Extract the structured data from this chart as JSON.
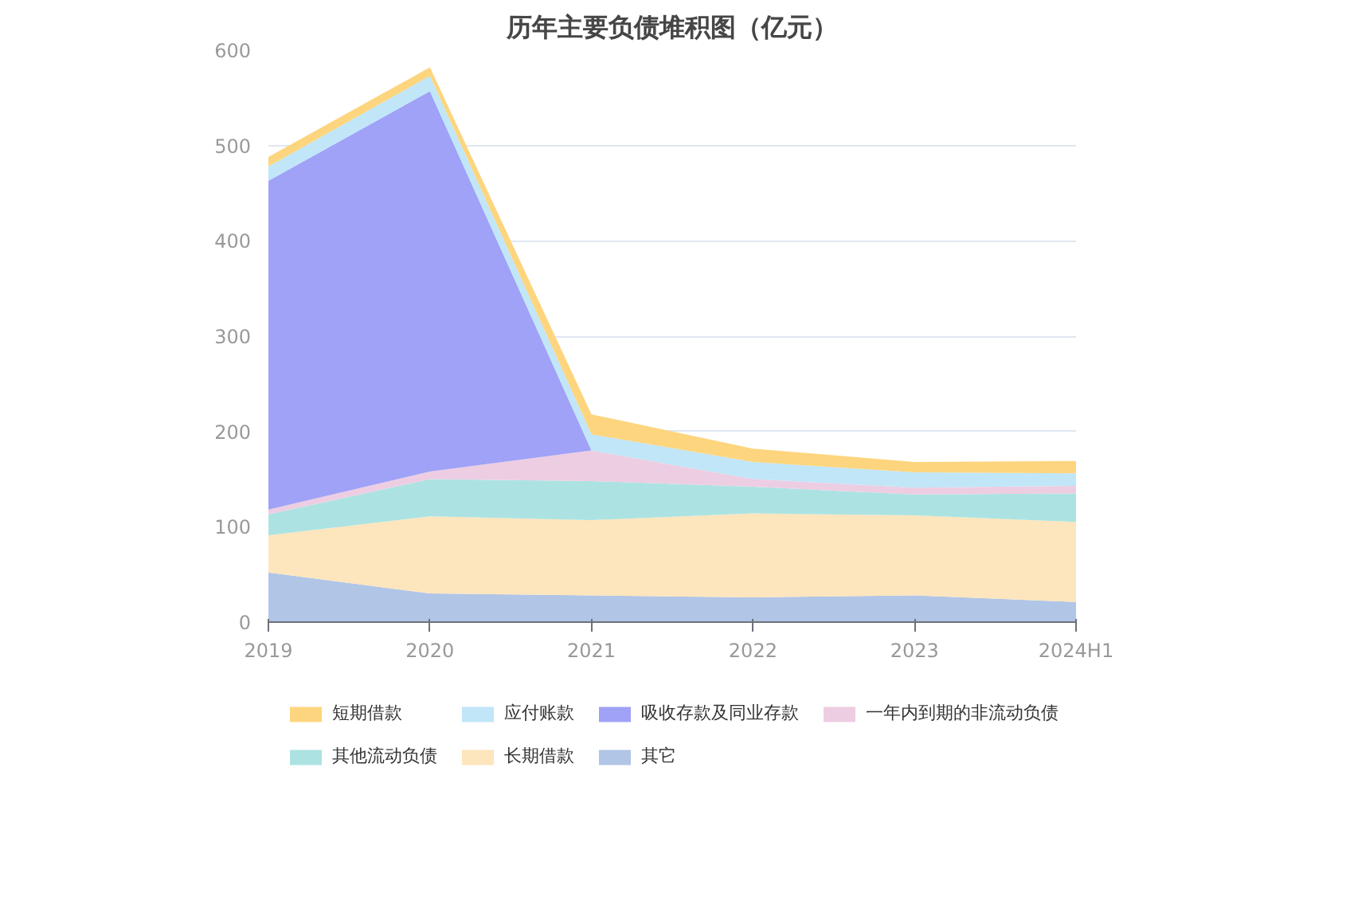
{
  "chart_data": {
    "type": "area",
    "stacked": true,
    "title": "历年主要负债堆积图（亿元）",
    "categories": [
      "2019",
      "2020",
      "2021",
      "2022",
      "2023",
      "2024H1"
    ],
    "series": [
      {
        "name": "其它",
        "color": "#b1c5e6",
        "values": [
          52,
          30,
          28,
          26,
          28,
          21
        ]
      },
      {
        "name": "长期借款",
        "color": "#fde5bd",
        "values": [
          39,
          81,
          79,
          88,
          84,
          84
        ]
      },
      {
        "name": "其他流动负债",
        "color": "#ace3e2",
        "values": [
          22,
          39,
          41,
          28,
          22,
          30
        ]
      },
      {
        "name": "一年内到期的非流动负债",
        "color": "#edcde2",
        "values": [
          5,
          8,
          32,
          8,
          7,
          8
        ]
      },
      {
        "name": "吸收存款及同业存款",
        "color": "#9fa2f6",
        "values": [
          345,
          399,
          0,
          0,
          0,
          0
        ]
      },
      {
        "name": "应付账款",
        "color": "#c0e6f8",
        "values": [
          15,
          16,
          17,
          18,
          16,
          13
        ]
      },
      {
        "name": "短期借款",
        "color": "#fdd57e",
        "values": [
          10,
          9,
          21,
          14,
          11,
          13
        ]
      }
    ],
    "ylim": [
      0,
      600
    ],
    "yticks": [
      0,
      100,
      200,
      300,
      400,
      500,
      600
    ],
    "grid": "y",
    "legend": "bottom"
  }
}
